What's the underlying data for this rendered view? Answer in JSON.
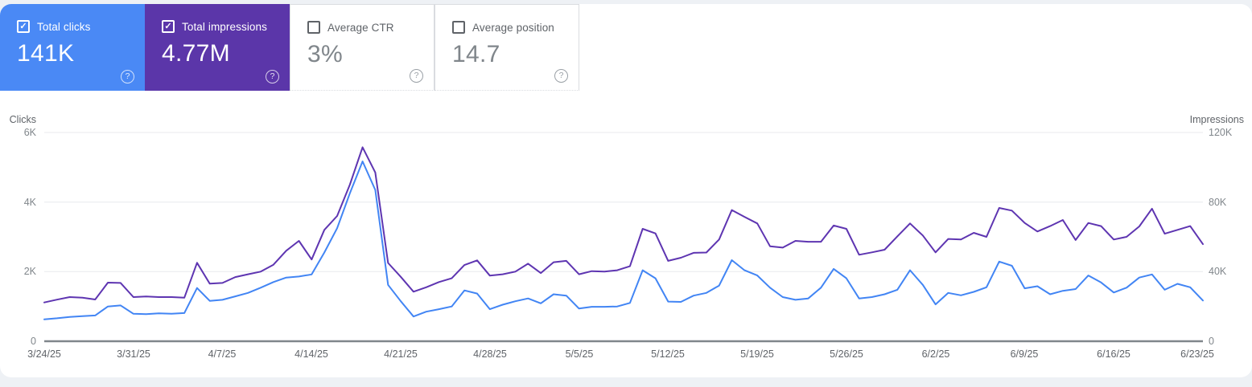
{
  "icons": {
    "check": "✓",
    "help": "?"
  },
  "colors": {
    "clicks_blue": "#4285f4",
    "impressions_purple": "#5e35b1",
    "clicks_card_bg": "#4a89f5",
    "impressions_card_bg": "#5b36a9"
  },
  "cards": [
    {
      "label": "Total clicks",
      "value": "141K",
      "checked": true,
      "bg": "#4a89f5"
    },
    {
      "label": "Total impressions",
      "value": "4.77M",
      "checked": true,
      "bg": "#5b36a9"
    },
    {
      "label": "Average CTR",
      "value": "3%",
      "checked": false,
      "bg": "#ffffff"
    },
    {
      "label": "Average position",
      "value": "14.7",
      "checked": false,
      "bg": "#ffffff"
    }
  ],
  "chart_data": {
    "type": "line",
    "x": {
      "start": "3/24/25",
      "end": "6/23/25",
      "interval": "daily",
      "points": 92
    },
    "x_tick_labels": [
      "3/24/25",
      "3/31/25",
      "4/7/25",
      "4/14/25",
      "4/21/25",
      "4/28/25",
      "5/5/25",
      "5/12/25",
      "5/19/25",
      "5/26/25",
      "6/2/25",
      "6/9/25",
      "6/16/25",
      "6/23/25"
    ],
    "left_axis": {
      "title": "Clicks",
      "ticks": [
        "6K",
        "4K",
        "2K",
        "0"
      ],
      "min": 0,
      "max": 6000
    },
    "right_axis": {
      "title": "Impressions",
      "ticks": [
        "120K",
        "80K",
        "40K",
        "0"
      ],
      "min": 0,
      "max": 120000
    },
    "grid": true,
    "legend_position": "none",
    "series": [
      {
        "name": "Clicks",
        "axis": "left",
        "color": "#4285f4",
        "values": [
          630,
          660,
          700,
          720,
          740,
          1000,
          1030,
          790,
          780,
          800,
          790,
          810,
          1530,
          1160,
          1190,
          1290,
          1390,
          1540,
          1700,
          1830,
          1860,
          1920,
          2550,
          3250,
          4250,
          5170,
          4350,
          1620,
          1150,
          710,
          850,
          920,
          1000,
          1460,
          1370,
          920,
          1050,
          1150,
          1230,
          1090,
          1350,
          1310,
          940,
          990,
          990,
          1000,
          1100,
          2040,
          1810,
          1140,
          1130,
          1310,
          1390,
          1600,
          2330,
          2040,
          1890,
          1540,
          1270,
          1190,
          1230,
          1540,
          2080,
          1810,
          1230,
          1270,
          1350,
          1480,
          2040,
          1620,
          1060,
          1390,
          1320,
          1420,
          1550,
          2290,
          2170,
          1520,
          1580,
          1350,
          1450,
          1500,
          1890,
          1690,
          1400,
          1540,
          1830,
          1920,
          1480,
          1650,
          1550,
          1170
        ]
      },
      {
        "name": "Impressions",
        "axis": "right",
        "color": "#5e35b1",
        "values": [
          22300,
          23900,
          25400,
          25000,
          24000,
          33700,
          33500,
          25400,
          25700,
          25400,
          25400,
          25000,
          45100,
          33100,
          33500,
          36900,
          38500,
          40000,
          44000,
          52000,
          57700,
          47000,
          64000,
          72000,
          90000,
          111500,
          97000,
          45000,
          37000,
          28500,
          31000,
          34000,
          36200,
          43800,
          46500,
          37700,
          38500,
          40000,
          44600,
          39200,
          45400,
          46200,
          38500,
          40300,
          40000,
          40800,
          43100,
          64600,
          62000,
          46200,
          48000,
          50800,
          51000,
          58500,
          75400,
          71500,
          67700,
          54600,
          53800,
          57700,
          57200,
          57200,
          66500,
          64600,
          49700,
          51100,
          52600,
          60300,
          67700,
          60800,
          51100,
          58800,
          58500,
          62300,
          60000,
          76600,
          75100,
          68000,
          63100,
          66200,
          69700,
          58200,
          68000,
          66200,
          58500,
          60000,
          66000,
          76200,
          61800,
          64000,
          66200,
          55800
        ]
      }
    ]
  }
}
